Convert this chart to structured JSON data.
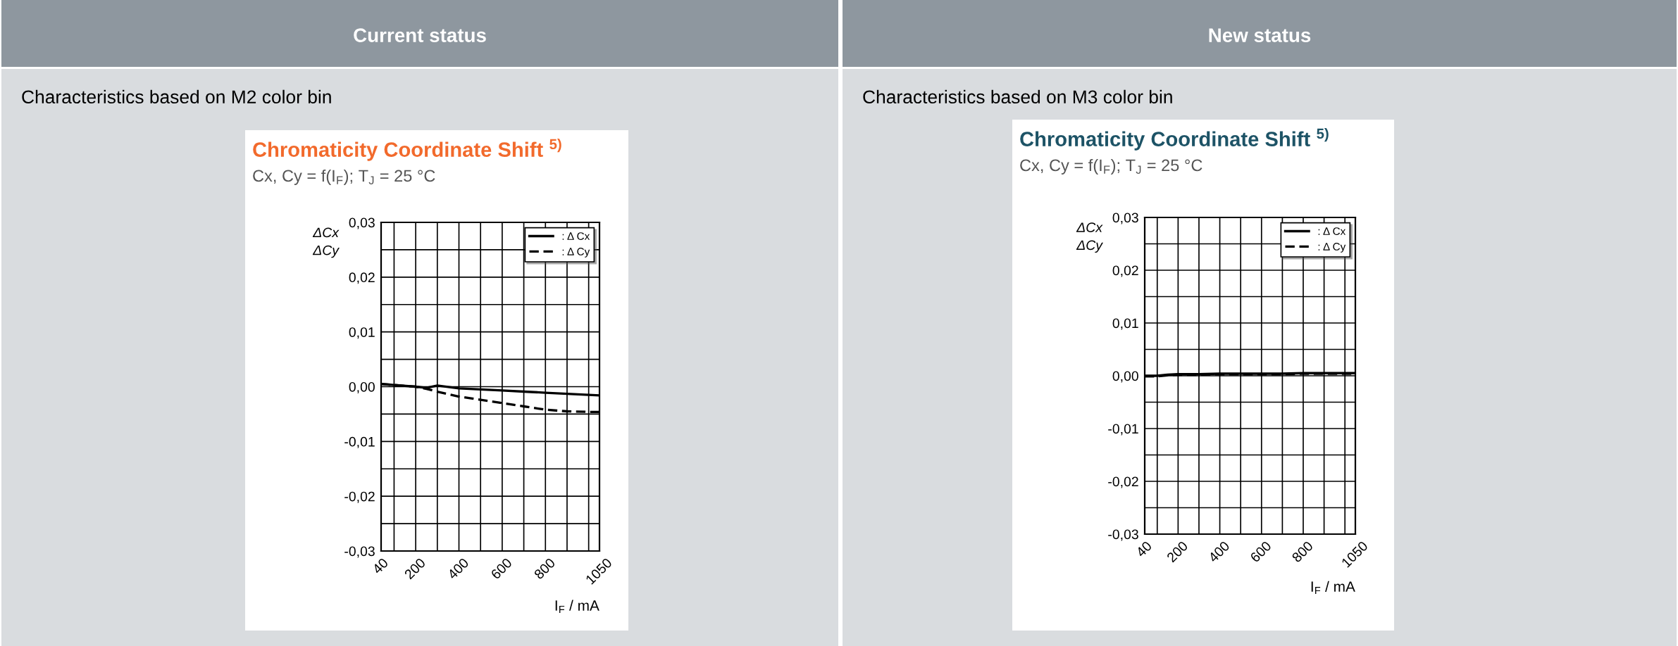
{
  "chart_data": [
    {
      "type": "line",
      "title": "Chromaticity Coordinate Shift $^{5)}$",
      "subtitle": "Cx, Cy = f(I$_{F}$); T$_{J}$ = 25 °C",
      "xlabel": "I$_{F}$ / mA",
      "ylabel": "ΔCx\nΔCy",
      "annotations": [
        "Current status",
        "Characteristics based on M2 color bin"
      ],
      "series": [
        {
          "name": ": Δ Cx",
          "color": "#000000",
          "line_style": "solid",
          "x": [
            40,
            100,
            200,
            250,
            300,
            400,
            500,
            600,
            700,
            800,
            900,
            1000,
            1050
          ],
          "values": [
            0.0005,
            0.0003,
            0.0,
            -0.0002,
            0.0002,
            -0.0003,
            -0.0005,
            -0.0007,
            -0.0009,
            -0.0011,
            -0.0013,
            -0.0015,
            -0.0016
          ]
        },
        {
          "name": ": Δ Cy",
          "color": "#000000",
          "line_style": "dashed",
          "x": [
            40,
            100,
            200,
            250,
            300,
            400,
            500,
            600,
            700,
            800,
            900,
            1000,
            1050
          ],
          "values": [
            0.0005,
            0.0003,
            0.0,
            -0.0004,
            -0.0009,
            -0.0018,
            -0.0024,
            -0.003,
            -0.0036,
            -0.0042,
            -0.0045,
            -0.0046,
            -0.0046
          ]
        }
      ],
      "xlim": [
        40,
        1050
      ],
      "ylim": [
        -0.03,
        0.03
      ],
      "xticks": [
        40,
        {
          "value": 100,
          "label": null
        },
        200,
        {
          "value": 300,
          "label": null
        },
        400,
        {
          "value": 500,
          "label": null
        },
        600,
        {
          "value": 700,
          "label": null
        },
        800,
        {
          "value": 900,
          "label": null
        },
        {
          "value": 1000,
          "label": null
        },
        1050
      ],
      "yticks": [
        {
          "value": -0.03,
          "label": "-0,03"
        },
        {
          "value": -0.025,
          "label": null
        },
        {
          "value": -0.02,
          "label": "-0,02"
        },
        {
          "value": -0.015,
          "label": null
        },
        {
          "value": -0.01,
          "label": "-0,01"
        },
        {
          "value": -0.005,
          "label": null
        },
        {
          "value": 0.0,
          "label": "0,00"
        },
        {
          "value": 0.005,
          "label": null
        },
        {
          "value": 0.01,
          "label": "0,01"
        },
        {
          "value": 0.015,
          "label": null
        },
        {
          "value": 0.02,
          "label": "0,02"
        },
        {
          "value": 0.025,
          "label": null
        },
        {
          "value": 0.03,
          "label": "0,03"
        }
      ],
      "grid": true,
      "legend": "top right",
      "marker": "none"
    },
    {
      "type": "line",
      "title": "Chromaticity Coordinate Shift $^{5)}$",
      "subtitle": "Cx, Cy = f(I$_{F}$); T$_{J}$ = 25 °C",
      "xlabel": "I$_{F}$ / mA",
      "ylabel": "ΔCx\nΔCy",
      "annotations": [
        "New status",
        "Characteristics based on M3 color bin"
      ],
      "series": [
        {
          "name": ": Δ Cx",
          "color": "#000000",
          "line_style": "solid",
          "x": [
            40,
            100,
            150,
            200,
            300,
            400,
            500,
            600,
            700,
            800,
            900,
            1000,
            1050
          ],
          "values": [
            0.0,
            0.0,
            0.0002,
            0.0003,
            0.0003,
            0.0004,
            0.0004,
            0.0004,
            0.0004,
            0.0005,
            0.0005,
            0.0005,
            0.0005
          ]
        },
        {
          "name": ": Δ Cy",
          "color": "#000000",
          "line_style": "dashed",
          "x": [
            40,
            100,
            150,
            200,
            300,
            400,
            500,
            600,
            700,
            800,
            900,
            1000,
            1050
          ],
          "values": [
            -0.0001,
            -0.0001,
            0.0001,
            0.0002,
            0.0002,
            0.0003,
            0.0003,
            0.0003,
            0.0003,
            0.0004,
            0.0004,
            0.0004,
            0.0004
          ]
        }
      ],
      "xlim": [
        40,
        1050
      ],
      "ylim": [
        -0.03,
        0.03
      ],
      "xticks": [
        40,
        {
          "value": 100,
          "label": null
        },
        200,
        {
          "value": 300,
          "label": null
        },
        400,
        {
          "value": 500,
          "label": null
        },
        600,
        {
          "value": 700,
          "label": null
        },
        800,
        {
          "value": 900,
          "label": null
        },
        {
          "value": 1000,
          "label": null
        },
        1050
      ],
      "yticks": [
        {
          "value": -0.03,
          "label": "-0,03"
        },
        {
          "value": -0.025,
          "label": null
        },
        {
          "value": -0.02,
          "label": "-0,02"
        },
        {
          "value": -0.015,
          "label": null
        },
        {
          "value": -0.01,
          "label": "-0,01"
        },
        {
          "value": -0.005,
          "label": null
        },
        {
          "value": 0.0,
          "label": "0,00"
        },
        {
          "value": 0.005,
          "label": null
        },
        {
          "value": 0.01,
          "label": "0,01"
        },
        {
          "value": 0.015,
          "label": null
        },
        {
          "value": 0.02,
          "label": "0,02"
        },
        {
          "value": 0.025,
          "label": null
        },
        {
          "value": 0.03,
          "label": "0,03"
        }
      ],
      "grid": true,
      "legend": "top right",
      "marker": "none"
    }
  ]
}
